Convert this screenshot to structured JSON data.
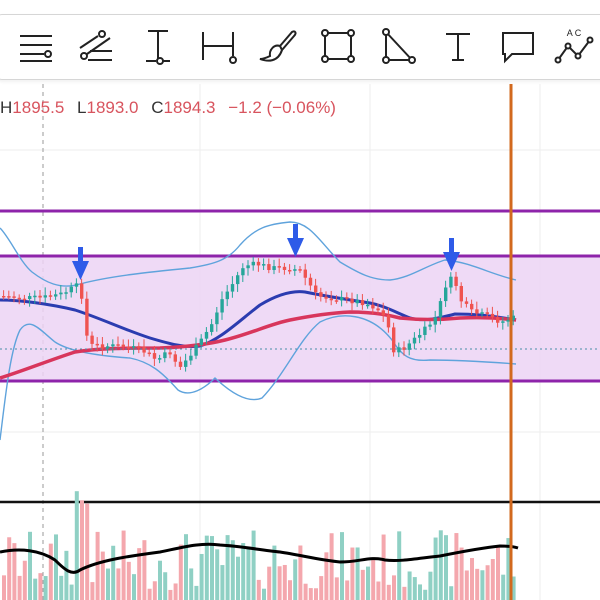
{
  "toolbar": {
    "tools": [
      {
        "name": "horizontal-lines-tool",
        "icon": "horizontal-lines-icon"
      },
      {
        "name": "trend-lines-tool",
        "icon": "trend-lines-icon"
      },
      {
        "name": "vertical-measure-tool",
        "icon": "vertical-measure-icon"
      },
      {
        "name": "horizontal-measure-tool",
        "icon": "horizontal-measure-icon"
      },
      {
        "name": "brush-tool",
        "icon": "brush-icon"
      },
      {
        "name": "rectangle-tool",
        "icon": "rectangle-icon"
      },
      {
        "name": "triangle-tool",
        "icon": "triangle-icon"
      },
      {
        "name": "text-tool",
        "icon": "text-icon"
      },
      {
        "name": "callout-tool",
        "icon": "callout-icon"
      },
      {
        "name": "pattern-tool",
        "icon": "pattern-abc-icon"
      }
    ],
    "pattern_letters": "A C"
  },
  "ohlc": {
    "high_label": "H",
    "high_value": "1895.5",
    "low_label": "L",
    "low_value": "1893.0",
    "close_label": "C",
    "close_value": "1894.3",
    "change": "−1.2 (−0.06%)"
  },
  "colors": {
    "up": "#26a69a",
    "down": "#ef5350",
    "channel": "#8e24aa",
    "channel_fill": "#e6c8f0",
    "bollinger": "#5fa3dc",
    "ma_fast": "#2b3cb0",
    "ma_slow": "#d8365c",
    "cursor": "#d2691e",
    "arrow": "#2e5be8",
    "volume_up": "#8fd0c4",
    "volume_down": "#f4a7ad",
    "volume_ma": "#000000"
  }
}
